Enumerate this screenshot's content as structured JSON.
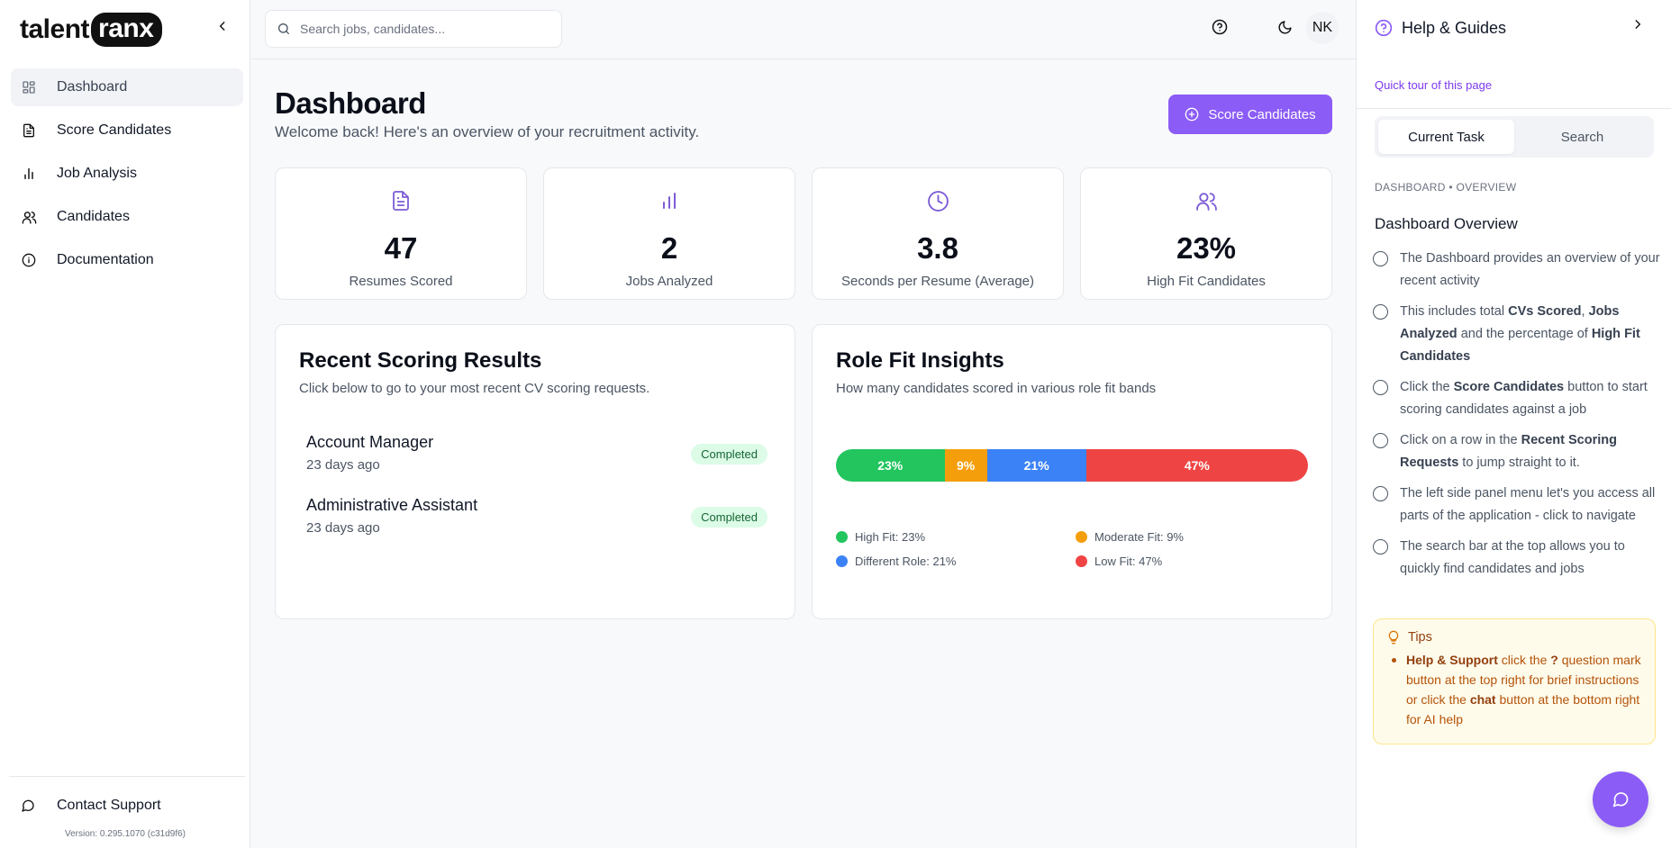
{
  "brand": {
    "logo_text_1": "talent",
    "logo_text_2": "ranx"
  },
  "sidebar": {
    "items": [
      {
        "label": "Dashboard",
        "icon": "dashboard-icon",
        "active": true
      },
      {
        "label": "Score Candidates",
        "icon": "file-text-icon"
      },
      {
        "label": "Job Analysis",
        "icon": "bar-chart-icon"
      },
      {
        "label": "Candidates",
        "icon": "users-icon"
      },
      {
        "label": "Documentation",
        "icon": "info-icon"
      }
    ],
    "support_label": "Contact Support",
    "version": "Version: 0.295.1070 (c31d9f6)"
  },
  "topbar": {
    "search_placeholder": "Search jobs, candidates...",
    "avatar_initials": "NK"
  },
  "main": {
    "title": "Dashboard",
    "subtitle": "Welcome back! Here's an overview of your recruitment activity.",
    "primary_button": "Score Candidates",
    "stats": [
      {
        "value": "47",
        "label": "Resumes Scored",
        "icon": "file-text-icon"
      },
      {
        "value": "2",
        "label": "Jobs Analyzed",
        "icon": "bar-chart-icon"
      },
      {
        "value": "3.8",
        "label": "Seconds per Resume (Average)",
        "icon": "clock-icon"
      },
      {
        "value": "23%",
        "label": "High Fit Candidates",
        "icon": "users-icon"
      }
    ],
    "recent": {
      "title": "Recent Scoring Results",
      "subtitle": "Click below to go to your most recent CV scoring requests.",
      "rows": [
        {
          "name": "Account Manager",
          "when": "23 days ago",
          "status": "Completed"
        },
        {
          "name": "Administrative Assistant",
          "when": "23 days ago",
          "status": "Completed"
        }
      ]
    },
    "fit": {
      "title": "Role Fit Insights",
      "subtitle": "How many candidates scored in various role fit bands",
      "segments": [
        {
          "label": "23%",
          "value": 23,
          "color": "#22c55e"
        },
        {
          "label": "9%",
          "value": 9,
          "color": "#f59e0b"
        },
        {
          "label": "21%",
          "value": 21,
          "color": "#3b82f6"
        },
        {
          "label": "47%",
          "value": 47,
          "color": "#ef4444"
        }
      ],
      "legend": [
        {
          "label": "High Fit: 23%",
          "color": "#22c55e"
        },
        {
          "label": "Moderate Fit: 9%",
          "color": "#f59e0b"
        },
        {
          "label": "Different Role: 21%",
          "color": "#3b82f6"
        },
        {
          "label": "Low Fit: 47%",
          "color": "#ef4444"
        }
      ]
    }
  },
  "help": {
    "title": "Help & Guides",
    "tour_link": "Quick tour of this page",
    "tabs": [
      "Current Task",
      "Search"
    ],
    "crumb": "DASHBOARD • OVERVIEW",
    "overview_title": "Dashboard Overview",
    "steps": [
      {
        "parts": [
          [
            "The Dashboard provides an overview of your recent activity",
            false
          ]
        ]
      },
      {
        "parts": [
          [
            "This includes total ",
            false
          ],
          [
            "CVs Scored",
            true
          ],
          [
            ", ",
            false
          ],
          [
            "Jobs Analyzed",
            true
          ],
          [
            " and the percentage of ",
            false
          ],
          [
            "High Fit Candidates",
            true
          ]
        ]
      },
      {
        "parts": [
          [
            "Click the ",
            false
          ],
          [
            "Score Candidates",
            true
          ],
          [
            " button to start scoring candidates against a job",
            false
          ]
        ]
      },
      {
        "parts": [
          [
            "Click on a row in the ",
            false
          ],
          [
            "Recent Scoring Requests",
            true
          ],
          [
            " to jump straight to it.",
            false
          ]
        ]
      },
      {
        "parts": [
          [
            "The left side panel menu let's you access all parts of the application - click to navigate",
            false
          ]
        ]
      },
      {
        "parts": [
          [
            "The search bar at the top allows you to quickly find candidates and jobs",
            false
          ]
        ]
      }
    ],
    "tips_title": "Tips",
    "tips_parts": [
      [
        "Help & Support",
        true
      ],
      [
        " click the ",
        false
      ],
      [
        "?",
        true
      ],
      [
        " question mark button at the top right for brief instructions or click the ",
        false
      ],
      [
        "chat",
        true
      ],
      [
        " button at the bottom right for AI help",
        false
      ]
    ]
  },
  "colors": {
    "accent": "#8b5cf6",
    "accent_text": "#7c3aed"
  }
}
